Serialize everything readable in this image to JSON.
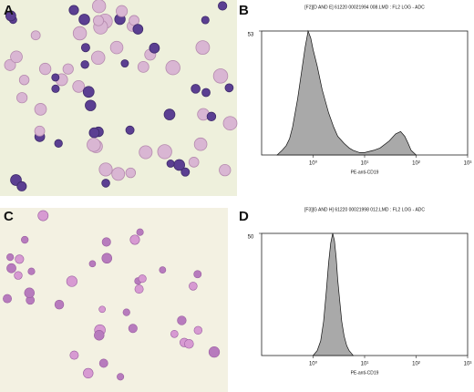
{
  "panels": {
    "a": "A",
    "b": "B",
    "c": "C",
    "d": "D"
  },
  "chart_data": [
    {
      "type": "area",
      "title": "[F2][D AND E] 61220 00021994 008.LMD : FL2 LOG - ADC",
      "x_label": "PE-anti-CD19",
      "log_x": true,
      "color": "#a9a9a9",
      "xlim": [
        0.1,
        1000
      ],
      "xticks": [
        {
          "value": 1,
          "label": "10⁰"
        },
        {
          "value": 10,
          "label": "10¹"
        },
        {
          "value": 100,
          "label": "10²"
        },
        {
          "value": 1000,
          "label": "10³"
        }
      ],
      "ylim": [
        0,
        53
      ],
      "yticks": [
        53
      ],
      "x": [
        0.2,
        0.25,
        0.3,
        0.35,
        0.4,
        0.5,
        0.6,
        0.7,
        0.8,
        0.9,
        1,
        1.2,
        1.5,
        2,
        2.5,
        3,
        4,
        5,
        6,
        8,
        10,
        15,
        20,
        30,
        40,
        50,
        60,
        70,
        80,
        100
      ],
      "values": [
        0,
        2,
        4,
        7,
        12,
        24,
        36,
        46,
        53,
        50,
        45,
        38,
        28,
        18,
        12,
        8,
        5,
        3,
        2,
        1,
        1,
        2,
        3,
        6,
        9,
        10,
        8,
        5,
        2,
        0
      ]
    },
    {
      "type": "area",
      "title": "[F3][G AND H] 61220 00021998 012.LMD : FL2 LOG - ADC",
      "x_label": "PE-anti-CD19",
      "log_x": true,
      "color": "#a9a9a9",
      "xlim": [
        0.1,
        1000
      ],
      "xticks": [
        {
          "value": 1,
          "label": "10⁰"
        },
        {
          "value": 10,
          "label": "10¹"
        },
        {
          "value": 100,
          "label": "10²"
        },
        {
          "value": 1000,
          "label": "10³"
        }
      ],
      "ylim": [
        0,
        50
      ],
      "yticks": [
        50
      ],
      "x": [
        1,
        1.2,
        1.4,
        1.6,
        1.8,
        2,
        2.2,
        2.4,
        2.6,
        2.8,
        3,
        3.3,
        3.6,
        4,
        4.5,
        5,
        5.5,
        6
      ],
      "values": [
        0,
        2,
        6,
        14,
        26,
        38,
        46,
        50,
        47,
        40,
        31,
        22,
        14,
        8,
        4,
        2,
        1,
        0
      ]
    }
  ]
}
